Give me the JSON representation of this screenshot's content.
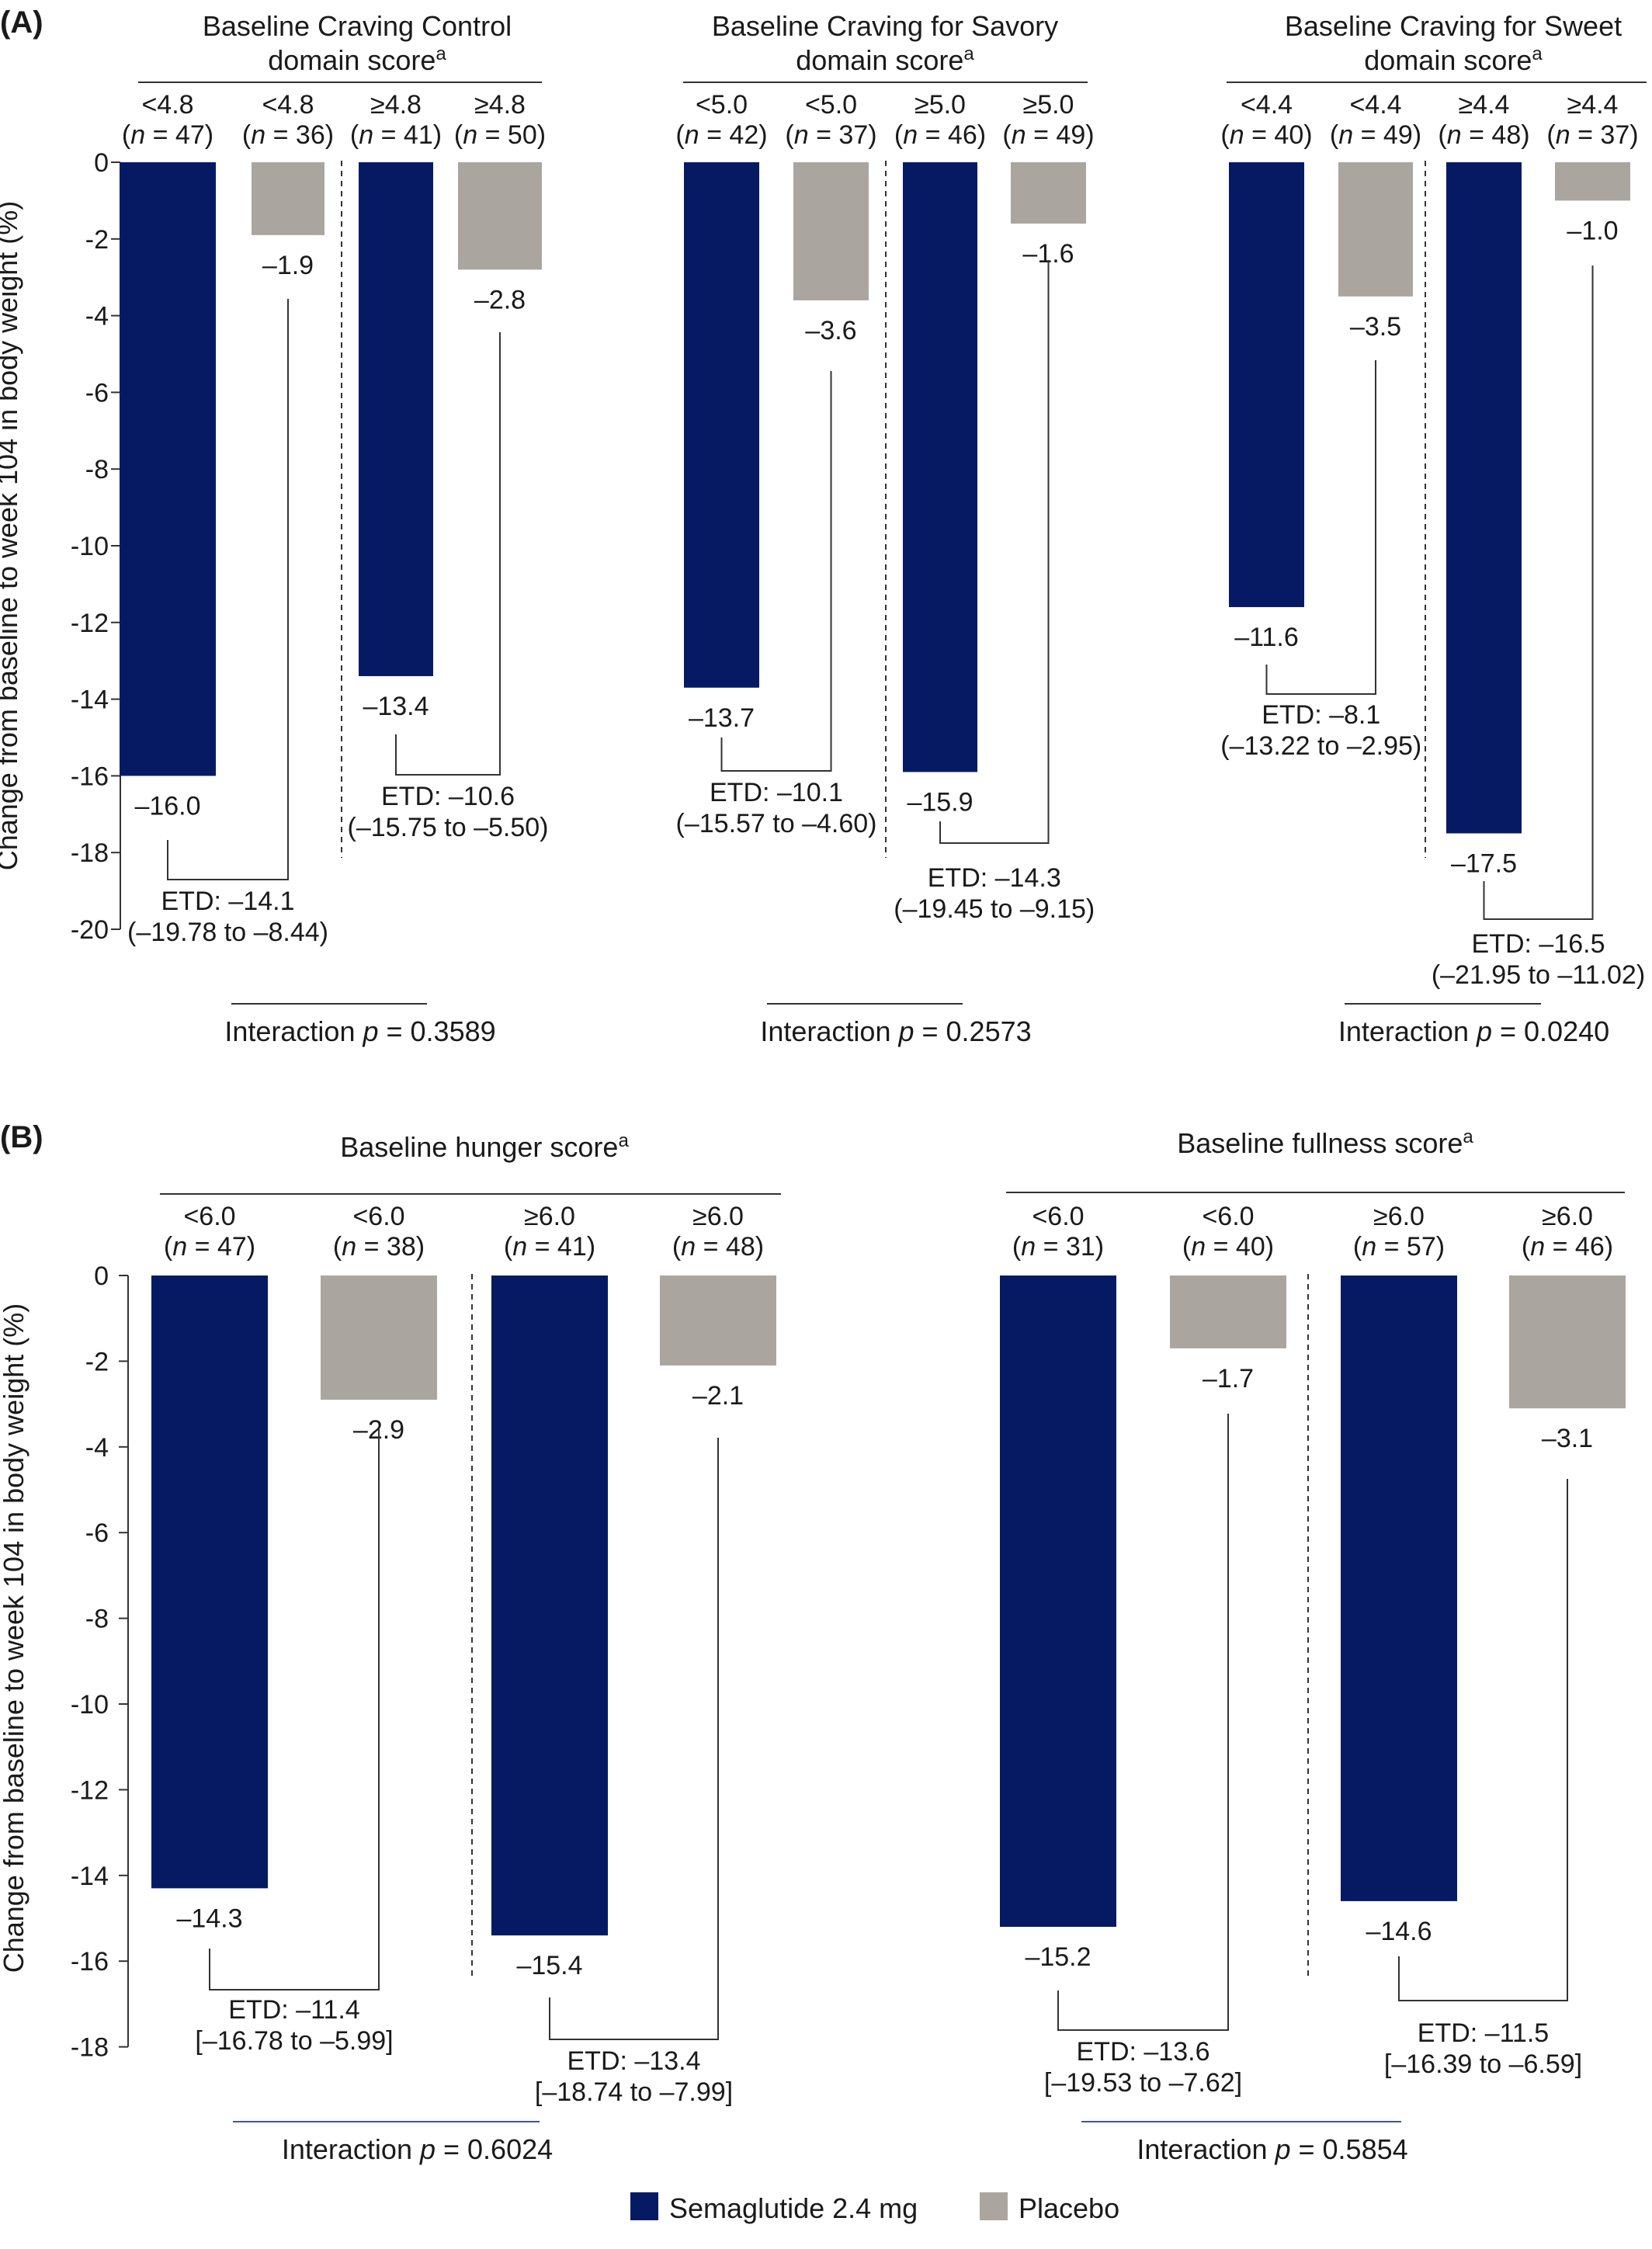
{
  "chart_data": [
    {
      "panel_label": "(A)",
      "type": "bar",
      "ylabel": "Change from baseline to week 104 in body weight (%)",
      "ylim": [
        -20,
        0
      ],
      "yticks": [
        "0",
        "-2",
        "-4",
        "-6",
        "-8",
        "-10",
        "-12",
        "-14",
        "-16",
        "-18",
        "-20"
      ],
      "series_names": [
        "Semaglutide 2.4 mg",
        "Placebo"
      ],
      "groups": [
        {
          "title_lines": [
            "Baseline Craving Control",
            "domain score"
          ],
          "footnote": "a",
          "interaction_label": "Interaction ",
          "p_symbol": "p",
          "interaction_value": " = 0.3589",
          "subgroups": [
            {
              "bars": [
                {
                  "series": "Semaglutide 2.4 mg",
                  "category": "<4.8",
                  "n": "(n = 47)",
                  "value": -16.0,
                  "label": "–16.0"
                },
                {
                  "series": "Placebo",
                  "category": "<4.8",
                  "n": "(n = 36)",
                  "value": -1.9,
                  "label": "–1.9"
                }
              ],
              "etd": "ETD: –14.1",
              "ci": "(–19.78 to –8.44)"
            },
            {
              "bars": [
                {
                  "series": "Semaglutide 2.4 mg",
                  "category": "≥4.8",
                  "n": "(n = 41)",
                  "value": -13.4,
                  "label": "–13.4"
                },
                {
                  "series": "Placebo",
                  "category": "≥4.8",
                  "n": "(n = 50)",
                  "value": -2.8,
                  "label": "–2.8"
                }
              ],
              "etd": "ETD: –10.6",
              "ci": "(–15.75 to –5.50)"
            }
          ]
        },
        {
          "title_lines": [
            "Baseline Craving for Savory",
            "domain score"
          ],
          "footnote": "a",
          "interaction_label": "Interaction ",
          "p_symbol": "p",
          "interaction_value": " = 0.2573",
          "subgroups": [
            {
              "bars": [
                {
                  "series": "Semaglutide 2.4 mg",
                  "category": "<5.0",
                  "n": "(n = 42)",
                  "value": -13.7,
                  "label": "–13.7"
                },
                {
                  "series": "Placebo",
                  "category": "<5.0",
                  "n": "(n = 37)",
                  "value": -3.6,
                  "label": "–3.6"
                }
              ],
              "etd": "ETD: –10.1",
              "ci": "(–15.57 to –4.60)"
            },
            {
              "bars": [
                {
                  "series": "Semaglutide 2.4 mg",
                  "category": "≥5.0",
                  "n": "(n = 46)",
                  "value": -15.9,
                  "label": "–15.9"
                },
                {
                  "series": "Placebo",
                  "category": "≥5.0",
                  "n": "(n = 49)",
                  "value": -1.6,
                  "label": "–1.6"
                }
              ],
              "etd": "ETD: –14.3",
              "ci": "(–19.45 to –9.15)"
            }
          ]
        },
        {
          "title_lines": [
            "Baseline Craving for Sweet",
            "domain score"
          ],
          "footnote": "a",
          "interaction_label": "Interaction ",
          "p_symbol": "p",
          "interaction_value": " = 0.0240",
          "subgroups": [
            {
              "bars": [
                {
                  "series": "Semaglutide 2.4 mg",
                  "category": "<4.4",
                  "n": "(n = 40)",
                  "value": -11.6,
                  "label": "–11.6"
                },
                {
                  "series": "Placebo",
                  "category": "<4.4",
                  "n": "(n = 49)",
                  "value": -3.5,
                  "label": "–3.5"
                }
              ],
              "etd": "ETD: –8.1",
              "ci": "(–13.22 to –2.95)"
            },
            {
              "bars": [
                {
                  "series": "Semaglutide 2.4 mg",
                  "category": "≥4.4",
                  "n": "(n = 48)",
                  "value": -17.5,
                  "label": "–17.5"
                },
                {
                  "series": "Placebo",
                  "category": "≥4.4",
                  "n": "(n = 37)",
                  "value": -1.0,
                  "label": "–1.0"
                }
              ],
              "etd": "ETD: –16.5",
              "ci": "(–21.95 to –11.02)"
            }
          ]
        }
      ]
    },
    {
      "panel_label": "(B)",
      "type": "bar",
      "ylabel": "Change from baseline to week 104 in body weight (%)",
      "ylim": [
        -18,
        0
      ],
      "yticks": [
        "0",
        "-2",
        "-4",
        "-6",
        "-8",
        "-10",
        "-12",
        "-14",
        "-16",
        "-18"
      ],
      "series_names": [
        "Semaglutide 2.4 mg",
        "Placebo"
      ],
      "groups": [
        {
          "title_lines": [
            "Baseline hunger score"
          ],
          "footnote": "a",
          "interaction_label": "Interaction ",
          "p_symbol": "p",
          "interaction_value": " = 0.6024",
          "subgroups": [
            {
              "bars": [
                {
                  "series": "Semaglutide 2.4 mg",
                  "category": "<6.0",
                  "n": "(n = 47)",
                  "value": -14.3,
                  "label": "–14.3"
                },
                {
                  "series": "Placebo",
                  "category": "<6.0",
                  "n": "(n = 38)",
                  "value": -2.9,
                  "label": "–2.9"
                }
              ],
              "etd": "ETD: –11.4",
              "ci": "[–16.78 to –5.99]"
            },
            {
              "bars": [
                {
                  "series": "Semaglutide 2.4 mg",
                  "category": "≥6.0",
                  "n": "(n = 41)",
                  "value": -15.4,
                  "label": "–15.4"
                },
                {
                  "series": "Placebo",
                  "category": "≥6.0",
                  "n": "(n = 48)",
                  "value": -2.1,
                  "label": "–2.1"
                }
              ],
              "etd": "ETD: –13.4",
              "ci": "[–18.74 to –7.99]"
            }
          ]
        },
        {
          "title_lines": [
            "Baseline fullness score"
          ],
          "footnote": "a",
          "interaction_label": "Interaction ",
          "p_symbol": "p",
          "interaction_value": " = 0.5854",
          "subgroups": [
            {
              "bars": [
                {
                  "series": "Semaglutide 2.4 mg",
                  "category": "<6.0",
                  "n": "(n = 31)",
                  "value": -15.2,
                  "label": "–15.2"
                },
                {
                  "series": "Placebo",
                  "category": "<6.0",
                  "n": "(n = 40)",
                  "value": -1.7,
                  "label": "–1.7"
                }
              ],
              "etd": "ETD: –13.6",
              "ci": "[–19.53 to –7.62]"
            },
            {
              "bars": [
                {
                  "series": "Semaglutide 2.4 mg",
                  "category": "≥6.0",
                  "n": "(n = 57)",
                  "value": -14.6,
                  "label": "–14.6"
                },
                {
                  "series": "Placebo",
                  "category": "≥6.0",
                  "n": "(n = 46)",
                  "value": -3.1,
                  "label": "–3.1"
                }
              ],
              "etd": "ETD: –11.5",
              "ci": "[–16.39 to –6.59]"
            }
          ]
        }
      ]
    }
  ],
  "legend": {
    "items": [
      {
        "label": "Semaglutide 2.4 mg",
        "color": "#051a63"
      },
      {
        "label": "Placebo",
        "color": "#aba59f"
      }
    ]
  },
  "colors": {
    "semaglutide": "#051a63",
    "placebo": "#aba59f",
    "interaction_rule_b": "#3a55a5"
  }
}
